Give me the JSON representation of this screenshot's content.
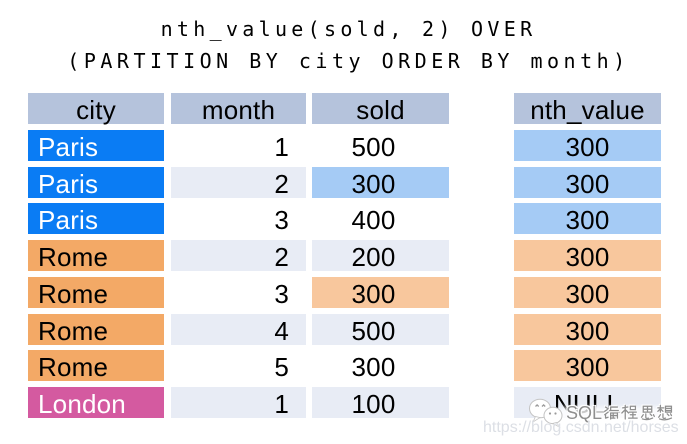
{
  "title": {
    "line1": "nth_value(sold, 2) OVER",
    "line2": "(PARTITION BY city ORDER BY month)"
  },
  "table": {
    "columns": [
      "city",
      "month",
      "sold"
    ],
    "rows": [
      {
        "city": "Paris",
        "month": "1",
        "sold": "500",
        "nth": "300",
        "partition": "paris",
        "sold_highlight": false
      },
      {
        "city": "Paris",
        "month": "2",
        "sold": "300",
        "nth": "300",
        "partition": "paris",
        "sold_highlight": true
      },
      {
        "city": "Paris",
        "month": "3",
        "sold": "400",
        "nth": "300",
        "partition": "paris",
        "sold_highlight": false
      },
      {
        "city": "Rome",
        "month": "2",
        "sold": "200",
        "nth": "300",
        "partition": "rome",
        "sold_highlight": false
      },
      {
        "city": "Rome",
        "month": "3",
        "sold": "300",
        "nth": "300",
        "partition": "rome",
        "sold_highlight": true
      },
      {
        "city": "Rome",
        "month": "4",
        "sold": "500",
        "nth": "300",
        "partition": "rome",
        "sold_highlight": false
      },
      {
        "city": "Rome",
        "month": "5",
        "sold": "300",
        "nth": "300",
        "partition": "rome",
        "sold_highlight": false
      },
      {
        "city": "London",
        "month": "1",
        "sold": "100",
        "nth": "NULL",
        "partition": "london",
        "sold_highlight": false
      }
    ]
  },
  "result_column": {
    "header": "nth_value"
  },
  "palette": {
    "header_bg": "#b5c3dc",
    "stripe_bg": "#e8ecf5",
    "text": "#000000",
    "paris": {
      "bg": "#0a7cf4",
      "text": "#ffffff",
      "light": "#a5cbf5"
    },
    "rome": {
      "bg": "#f3a966",
      "text": "#000000",
      "light": "#f8c79d"
    },
    "london": {
      "bg": "#d45aa0",
      "text": "#ffffff",
      "light": "#e8ecf5"
    }
  },
  "watermark": {
    "brand": "SQL编程思想",
    "url": "https://blog.csdn.net/horses",
    "icon": "wechat-icon"
  }
}
